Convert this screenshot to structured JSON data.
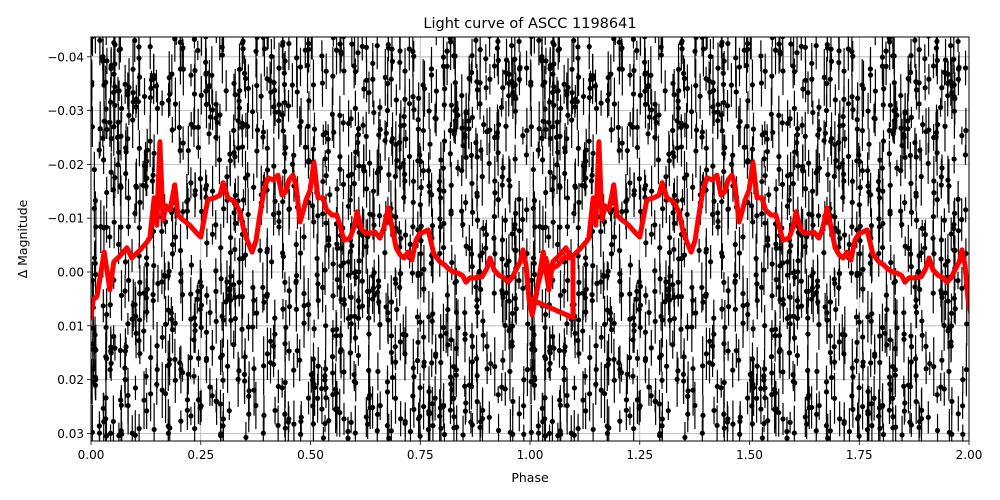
{
  "chart_data": {
    "type": "scatter",
    "title": "Light curve of ASCC 1198641",
    "xlabel": "Phase",
    "ylabel": "Δ Magnitude",
    "xlim": [
      0.0,
      2.0
    ],
    "ylim": [
      0.0315,
      -0.0435
    ],
    "y_inverted": true,
    "grid": true,
    "xticks": [
      0.0,
      0.25,
      0.5,
      0.75,
      1.0,
      1.25,
      1.5,
      1.75,
      2.0
    ],
    "xtick_labels": [
      "0.00",
      "0.25",
      "0.50",
      "0.75",
      "1.00",
      "1.25",
      "1.50",
      "1.75",
      "2.00"
    ],
    "yticks": [
      -0.04,
      -0.03,
      -0.02,
      -0.01,
      0.0,
      0.01,
      0.02,
      0.03
    ],
    "ytick_labels": [
      "−0.04",
      "−0.03",
      "−0.02",
      "−0.01",
      "0.00",
      "0.01",
      "0.02",
      "0.03"
    ],
    "series": [
      {
        "name": "observations",
        "kind": "errorbar-scatter",
        "color": "#000000",
        "description": "Dense phase-folded photometry with vertical error bars, scatter roughly -0.045 to 0.03 mag, repeated over two cycles",
        "n_columns_per_cycle": 120,
        "scatter_range": [
          -0.045,
          0.031
        ]
      },
      {
        "name": "binned model",
        "kind": "line",
        "color": "#ff0000",
        "linewidth": 5,
        "repeat_cycles": 2,
        "phase": [
          0.0,
          0.005,
          0.014,
          0.03,
          0.043,
          0.052,
          0.066,
          0.082,
          0.093,
          0.112,
          0.128,
          0.134,
          0.144,
          0.15,
          0.157,
          0.164,
          0.171,
          0.18,
          0.191,
          0.198,
          0.209,
          0.225,
          0.241,
          0.25,
          0.266,
          0.282,
          0.294,
          0.301,
          0.312,
          0.328,
          0.339,
          0.348,
          0.358,
          0.367,
          0.376,
          0.383,
          0.394,
          0.403,
          0.415,
          0.426,
          0.435,
          0.444,
          0.451,
          0.46,
          0.467,
          0.476,
          0.481,
          0.49,
          0.499,
          0.508,
          0.517,
          0.528,
          0.537,
          0.549,
          0.56,
          0.567,
          0.576,
          0.59,
          0.601,
          0.606,
          0.617,
          0.626,
          0.636,
          0.647,
          0.658,
          0.667,
          0.677,
          0.686,
          0.695,
          0.704,
          0.713,
          0.722,
          0.731,
          0.74,
          0.749,
          0.768,
          0.781,
          0.795,
          0.806,
          0.813,
          0.825,
          0.836,
          0.847,
          0.854,
          0.863,
          0.877,
          0.891,
          0.902,
          0.909,
          0.918,
          0.929,
          0.941,
          0.95,
          0.959,
          0.968,
          0.978,
          0.984,
          0.991,
          0.998,
          1.005,
          1.011,
          1.018,
          1.027,
          1.036,
          1.045,
          1.052,
          1.064,
          1.073,
          1.08,
          1.091,
          1.098,
          1.098
        ],
        "mag": [
          0.0085,
          0.0052,
          0.0045,
          -0.0037,
          0.0033,
          -0.0019,
          -0.003,
          -0.0045,
          -0.0026,
          -0.0041,
          -0.0056,
          -0.0063,
          -0.0138,
          -0.0087,
          -0.0242,
          -0.0097,
          -0.0123,
          -0.0115,
          -0.0162,
          -0.0106,
          -0.0097,
          -0.0087,
          -0.0072,
          -0.0065,
          -0.0134,
          -0.0138,
          -0.0143,
          -0.0166,
          -0.0138,
          -0.013,
          -0.0112,
          -0.0078,
          -0.0054,
          -0.0037,
          -0.0059,
          -0.0097,
          -0.0152,
          -0.0175,
          -0.0171,
          -0.018,
          -0.0143,
          -0.0149,
          -0.0171,
          -0.018,
          -0.0162,
          -0.0093,
          -0.0106,
          -0.0134,
          -0.0152,
          -0.0203,
          -0.0138,
          -0.0138,
          -0.0115,
          -0.0106,
          -0.0106,
          -0.0087,
          -0.0059,
          -0.0063,
          -0.0087,
          -0.0112,
          -0.0078,
          -0.0072,
          -0.0072,
          -0.0074,
          -0.0063,
          -0.0082,
          -0.0119,
          -0.0082,
          -0.0045,
          -0.0032,
          -0.0026,
          -0.0037,
          -0.0022,
          -0.0059,
          -0.0071,
          -0.0078,
          -0.0033,
          -0.0019,
          -0.0013,
          -0.0007,
          0.0,
          0.0002,
          0.0007,
          0.0019,
          0.0011,
          0.0011,
          0.0009,
          -0.0007,
          -0.0026,
          -0.0004,
          0.0006,
          0.0011,
          0.0019,
          0.0011,
          -0.0004,
          -0.0019,
          -0.0041,
          -0.0013,
          0.0052,
          0.008,
          0.0056,
          0.0024,
          -0.0004,
          -0.0026,
          0.0006,
          -0.0007,
          -0.0013,
          -0.0022,
          -0.0028,
          -0.0026,
          -0.0026,
          0.0085
        ]
      }
    ]
  }
}
